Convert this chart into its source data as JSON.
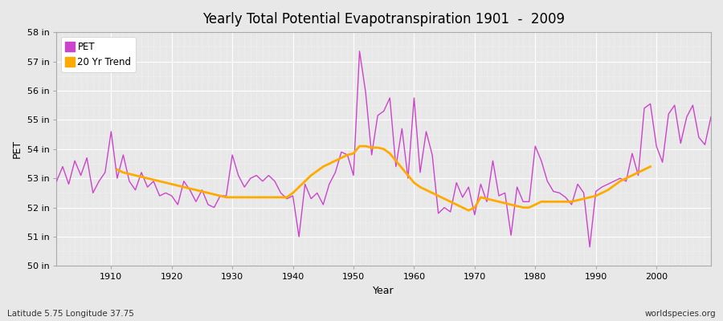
{
  "title": "Yearly Total Potential Evapotranspiration 1901  -  2009",
  "xlabel": "Year",
  "ylabel": "PET",
  "footnote_left": "Latitude 5.75 Longitude 37.75",
  "footnote_right": "worldspecies.org",
  "pet_color": "#cc44cc",
  "trend_color": "#ffaa00",
  "bg_color": "#e8e8e8",
  "grid_color": "#ffffff",
  "fig_color": "#e8e8e8",
  "ylim": [
    50,
    58
  ],
  "yticks": [
    50,
    51,
    52,
    53,
    54,
    55,
    56,
    57,
    58
  ],
  "ytick_labels": [
    "50 in",
    "51 in",
    "52 in",
    "53 in",
    "54 in",
    "55 in",
    "56 in",
    "57 in",
    "58 in"
  ],
  "xticks": [
    1910,
    1920,
    1930,
    1940,
    1950,
    1960,
    1970,
    1980,
    1990,
    2000
  ],
  "xlim": [
    1901,
    2009
  ],
  "years": [
    1901,
    1902,
    1903,
    1904,
    1905,
    1906,
    1907,
    1908,
    1909,
    1910,
    1911,
    1912,
    1913,
    1914,
    1915,
    1916,
    1917,
    1918,
    1919,
    1920,
    1921,
    1922,
    1923,
    1924,
    1925,
    1926,
    1927,
    1928,
    1929,
    1930,
    1931,
    1932,
    1933,
    1934,
    1935,
    1936,
    1937,
    1938,
    1939,
    1940,
    1941,
    1942,
    1943,
    1944,
    1945,
    1946,
    1947,
    1948,
    1949,
    1950,
    1951,
    1952,
    1953,
    1954,
    1955,
    1956,
    1957,
    1958,
    1959,
    1960,
    1961,
    1962,
    1963,
    1964,
    1965,
    1966,
    1967,
    1968,
    1969,
    1970,
    1971,
    1972,
    1973,
    1974,
    1975,
    1976,
    1977,
    1978,
    1979,
    1980,
    1981,
    1982,
    1983,
    1984,
    1985,
    1986,
    1987,
    1988,
    1989,
    1990,
    1991,
    1992,
    1993,
    1994,
    1995,
    1996,
    1997,
    1998,
    1999,
    2000,
    2001,
    2002,
    2003,
    2004,
    2005,
    2006,
    2007,
    2008,
    2009
  ],
  "pet_values": [
    52.9,
    53.4,
    52.8,
    53.6,
    53.1,
    53.7,
    52.5,
    52.9,
    53.2,
    54.6,
    53.0,
    53.8,
    52.9,
    52.6,
    53.2,
    52.7,
    52.9,
    52.4,
    52.5,
    52.4,
    52.1,
    52.9,
    52.6,
    52.2,
    52.6,
    52.1,
    52.0,
    52.4,
    52.4,
    53.8,
    53.1,
    52.7,
    53.0,
    53.1,
    52.9,
    53.1,
    52.9,
    52.5,
    52.3,
    52.4,
    51.0,
    52.8,
    52.3,
    52.5,
    52.1,
    52.8,
    53.2,
    53.9,
    53.8,
    53.1,
    57.35,
    55.95,
    53.8,
    55.15,
    55.3,
    55.75,
    53.4,
    54.7,
    53.0,
    55.75,
    53.2,
    54.6,
    53.8,
    51.8,
    52.0,
    51.85,
    52.85,
    52.35,
    52.7,
    51.75,
    52.8,
    52.2,
    53.6,
    52.4,
    52.5,
    51.05,
    52.7,
    52.2,
    52.2,
    54.1,
    53.6,
    52.9,
    52.55,
    52.5,
    52.35,
    52.1,
    52.8,
    52.5,
    50.65,
    52.55,
    52.7,
    52.8,
    52.9,
    53.0,
    52.9,
    53.85,
    53.1,
    55.4,
    55.55,
    54.1,
    53.55,
    55.2,
    55.5,
    54.2,
    55.1,
    55.5,
    54.4,
    54.15,
    55.1
  ],
  "trend_values": [
    null,
    null,
    null,
    null,
    null,
    null,
    null,
    null,
    null,
    null,
    53.3,
    53.2,
    53.15,
    53.1,
    53.05,
    53.0,
    52.95,
    52.9,
    52.85,
    52.8,
    52.75,
    52.7,
    52.65,
    52.6,
    52.55,
    52.5,
    52.45,
    52.4,
    52.35,
    52.35,
    52.35,
    52.35,
    52.35,
    52.35,
    52.35,
    52.35,
    52.35,
    52.35,
    52.35,
    52.5,
    52.7,
    52.9,
    53.1,
    53.25,
    53.4,
    53.5,
    53.6,
    53.7,
    53.8,
    53.85,
    54.1,
    54.1,
    54.05,
    54.05,
    54.0,
    53.85,
    53.6,
    53.35,
    53.1,
    52.85,
    52.7,
    52.6,
    52.5,
    52.4,
    52.3,
    52.2,
    52.1,
    52.0,
    51.9,
    52.0,
    52.35,
    52.3,
    52.25,
    52.2,
    52.15,
    52.1,
    52.05,
    52.0,
    52.0,
    52.1,
    52.2,
    52.2,
    52.2,
    52.2,
    52.2,
    52.2,
    52.25,
    52.3,
    52.35,
    52.4,
    52.5,
    52.6,
    52.75,
    52.9,
    53.0,
    53.1,
    53.2,
    53.3,
    53.4,
    null,
    null,
    null,
    null,
    null,
    null,
    null,
    null,
    null,
    null
  ]
}
